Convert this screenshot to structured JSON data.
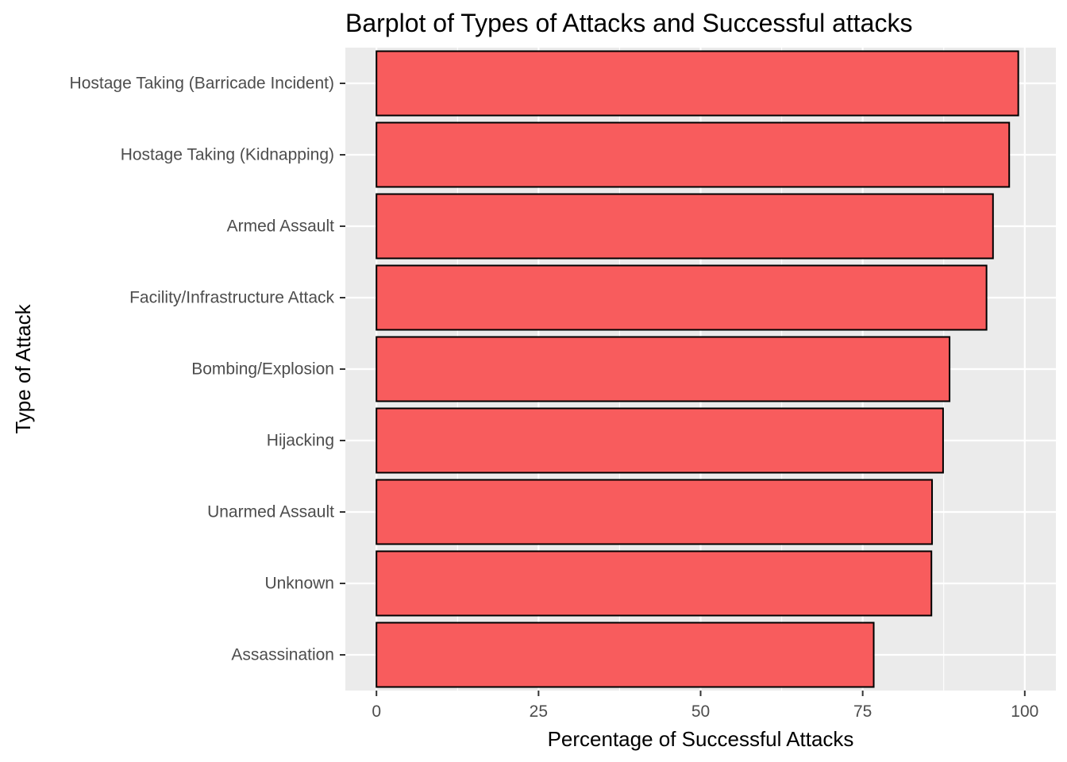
{
  "chart_data": {
    "type": "bar",
    "orientation": "horizontal",
    "title": "Barplot of Types of Attacks and Successful attacks",
    "xlabel": "Percentage of Successful Attacks",
    "ylabel": "Type of Attack",
    "categories": [
      "Hostage Taking (Barricade Incident)",
      "Hostage Taking (Kidnapping)",
      "Armed Assault",
      "Facility/Infrastructure Attack",
      "Bombing/Explosion",
      "Hijacking",
      "Unarmed Assault",
      "Unknown",
      "Assassination"
    ],
    "values": [
      99.0,
      97.6,
      95.1,
      94.1,
      88.4,
      87.4,
      85.7,
      85.6,
      76.7
    ],
    "xlim": [
      -4.8,
      104.8
    ],
    "xticks": [
      0,
      25,
      50,
      75,
      100
    ],
    "xtick_labels": [
      "0",
      "25",
      "50",
      "75",
      "100"
    ],
    "grid": true,
    "legend": "none",
    "colors": {
      "bar_fill": "#f85c5d",
      "bar_stroke": "#000000",
      "panel_bg": "#ebebeb",
      "grid": "#ffffff"
    }
  }
}
